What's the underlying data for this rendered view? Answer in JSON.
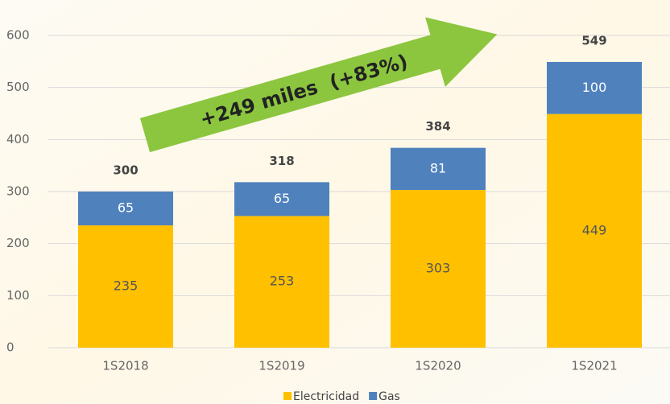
{
  "chart_data": {
    "type": "stacked_bar",
    "categories": [
      "1S2018",
      "1S2019",
      "1S2020",
      "1S2021"
    ],
    "series": [
      {
        "name": "Electricidad",
        "color": "#FFC000",
        "values": [
          235,
          253,
          303,
          449
        ]
      },
      {
        "name": "Gas",
        "color": "#4F81BD",
        "values": [
          65,
          65,
          81,
          100
        ]
      }
    ],
    "totals": [
      300,
      318,
      384,
      549
    ],
    "annotation": "+249 miles  (+83%)",
    "ylim": [
      0,
      600
    ],
    "yticks": [
      0,
      100,
      200,
      300,
      400,
      500,
      600
    ],
    "grid": true,
    "legend": "bottom"
  }
}
